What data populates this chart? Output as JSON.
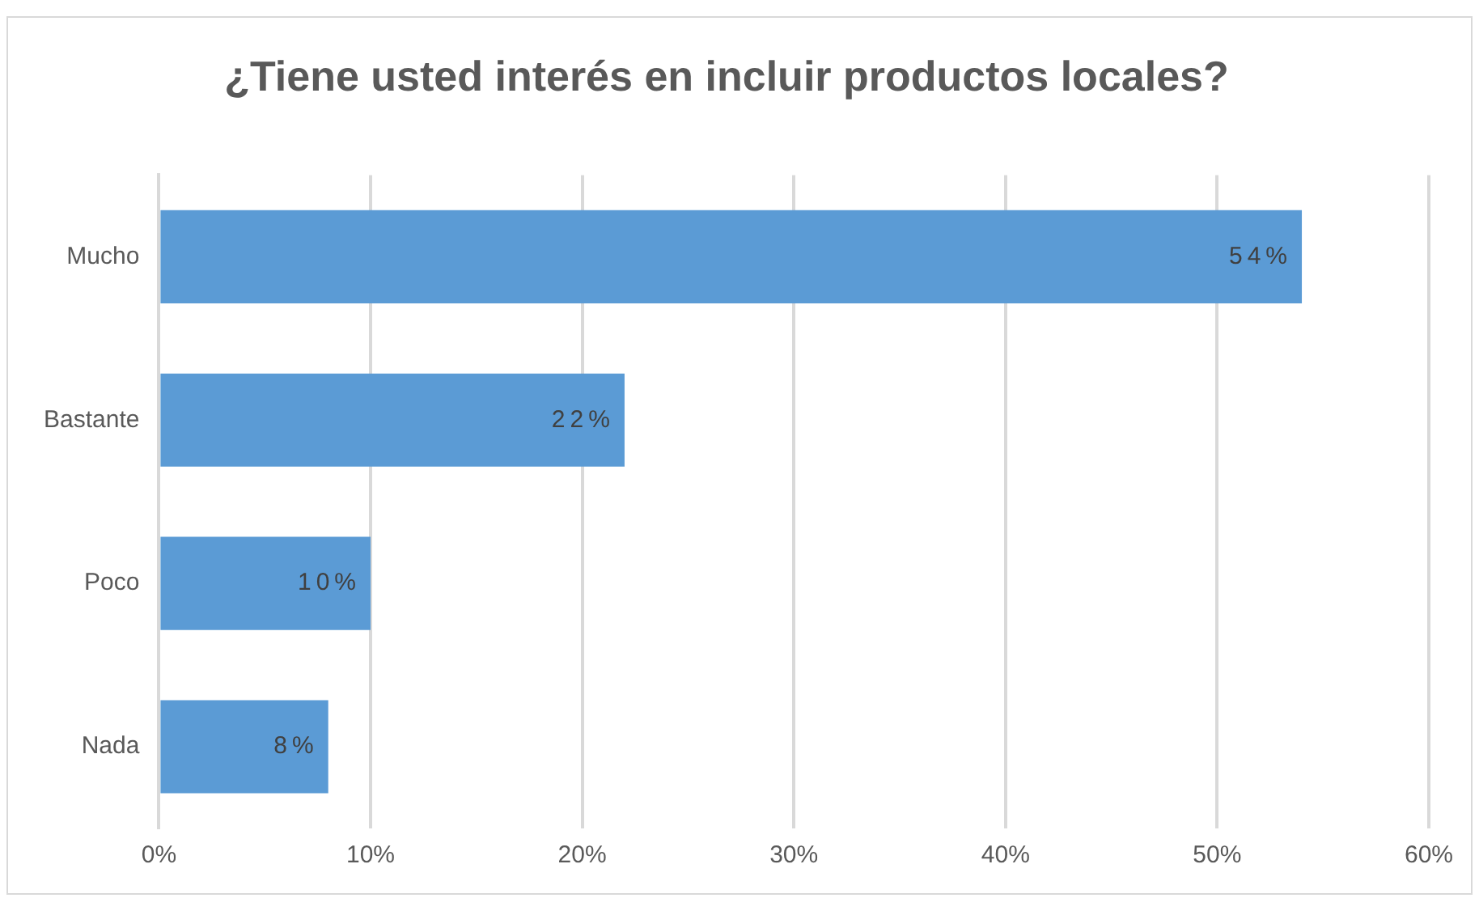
{
  "chart_data": {
    "type": "bar",
    "orientation": "horizontal",
    "title": "¿Tiene usted interés en incluir productos locales?",
    "categories": [
      "Mucho",
      "Bastante",
      "Poco",
      "Nada"
    ],
    "values": [
      54,
      22,
      10,
      8
    ],
    "color": "#5b9bd5",
    "value_labels": [
      "54%",
      "22%",
      "10%",
      "8%"
    ],
    "xlim": [
      0,
      60
    ],
    "xticks": [
      {
        "value": 0,
        "label": "0%"
      },
      {
        "value": 10,
        "label": "10%"
      },
      {
        "value": 20,
        "label": "20%"
      },
      {
        "value": 30,
        "label": "30%"
      },
      {
        "value": 40,
        "label": "40%"
      },
      {
        "value": 50,
        "label": "50%"
      },
      {
        "value": 60,
        "label": "60%"
      }
    ],
    "grid": "x",
    "legend": false
  }
}
